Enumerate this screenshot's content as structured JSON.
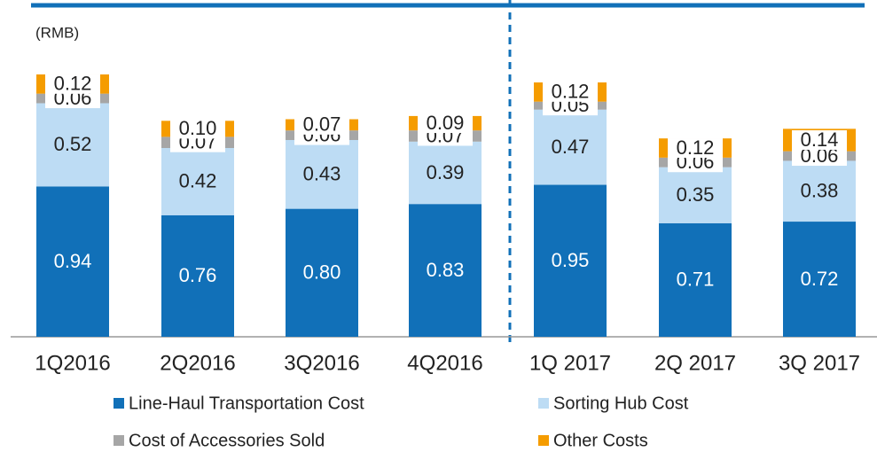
{
  "chart_data": {
    "type": "stacked_bar",
    "y_label": "(RMB)",
    "categories": [
      "1Q2016",
      "2Q2016",
      "3Q2016",
      "4Q2016",
      "1Q 2017",
      "2Q 2017",
      "3Q 2017"
    ],
    "series": [
      {
        "name": "Line-Haul Transportation Cost",
        "color": "#1170b8",
        "values": [
          0.94,
          0.76,
          0.8,
          0.83,
          0.95,
          0.71,
          0.72
        ],
        "value_labels": [
          "0.94",
          "0.76",
          "0.80",
          "0.83",
          "0.95",
          "0.71",
          "0.72"
        ]
      },
      {
        "name": "Sorting Hub Cost",
        "color": "#bddcf4",
        "values": [
          0.52,
          0.42,
          0.43,
          0.39,
          0.47,
          0.35,
          0.38
        ],
        "value_labels": [
          "0.52",
          "0.42",
          "0.43",
          "0.39",
          "0.47",
          "0.35",
          "0.38"
        ]
      },
      {
        "name": "Cost of Accessories Sold",
        "color": "#a6a6a6",
        "values": [
          0.06,
          0.07,
          0.06,
          0.07,
          0.05,
          0.06,
          0.06
        ],
        "value_labels": [
          "0.06",
          "0.07",
          "0.06",
          "0.07",
          "0.05",
          "0.06",
          "0.06"
        ]
      },
      {
        "name": "Other Costs",
        "color": "#f59c00",
        "values": [
          0.12,
          0.1,
          0.07,
          0.09,
          0.12,
          0.12,
          0.14
        ],
        "value_labels": [
          "0.12",
          "0.10",
          "0.07",
          "0.09",
          "0.12",
          "0.12",
          "0.14"
        ]
      }
    ]
  }
}
